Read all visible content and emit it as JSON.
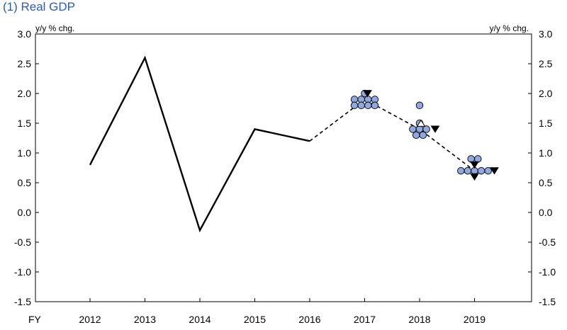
{
  "chart_data": {
    "type": "line",
    "title": "(1) Real GDP",
    "unit_label_left": "y/y % chg.",
    "unit_label_right": "y/y % chg.",
    "x_axis_prefix": "FY",
    "categories": [
      "2012",
      "2013",
      "2014",
      "2015",
      "2016",
      "2017",
      "2018",
      "2019"
    ],
    "ylim": [
      -1.5,
      3.0
    ],
    "yticks": [
      "3.0",
      "2.5",
      "2.0",
      "1.5",
      "1.0",
      "0.5",
      "0.0",
      "-0.5",
      "-1.0",
      "-1.5"
    ],
    "grid": false,
    "series": [
      {
        "style": "solid",
        "color": "#000000",
        "points": [
          [
            "2012",
            0.8
          ],
          [
            "2013",
            2.6
          ],
          [
            "2014",
            -0.3
          ],
          [
            "2015",
            1.4
          ],
          [
            "2016",
            1.2
          ]
        ]
      },
      {
        "style": "dashed",
        "color": "#000000",
        "points": [
          [
            "2016",
            1.2
          ],
          [
            "2017",
            1.9
          ],
          [
            "2018",
            1.4
          ],
          [
            "2019",
            0.7
          ]
        ]
      }
    ],
    "dot_forecasts": {
      "marker": "circle",
      "fill": "#8fa8e0",
      "points": [
        [
          "2017",
          2.0
        ],
        [
          "2017",
          1.9
        ],
        [
          "2017",
          1.9
        ],
        [
          "2017",
          1.9
        ],
        [
          "2017",
          1.9
        ],
        [
          "2017",
          1.8
        ],
        [
          "2017",
          1.8
        ],
        [
          "2017",
          1.8
        ],
        [
          "2017",
          1.8
        ],
        [
          "2018",
          1.8
        ],
        [
          "2018",
          1.5
        ],
        [
          "2018",
          1.4
        ],
        [
          "2018",
          1.4
        ],
        [
          "2018",
          1.4
        ],
        [
          "2018",
          1.3
        ],
        [
          "2018",
          1.3
        ],
        [
          "2019",
          0.9
        ],
        [
          "2019",
          0.9
        ],
        [
          "2019",
          0.7
        ],
        [
          "2019",
          0.7
        ],
        [
          "2019",
          0.7
        ],
        [
          "2019",
          0.7
        ],
        [
          "2019",
          0.7
        ]
      ]
    },
    "triangle_markers": {
      "fill": "#000000",
      "points": [
        [
          "2017",
          2.0
        ],
        [
          "2018",
          1.4
        ],
        [
          "2019",
          0.8
        ],
        [
          "2019",
          0.7
        ],
        [
          "2019",
          0.6
        ]
      ]
    },
    "open_triangle_markers": {
      "fill": "#ffffff",
      "points": [
        [
          "2018",
          1.5
        ]
      ]
    }
  }
}
